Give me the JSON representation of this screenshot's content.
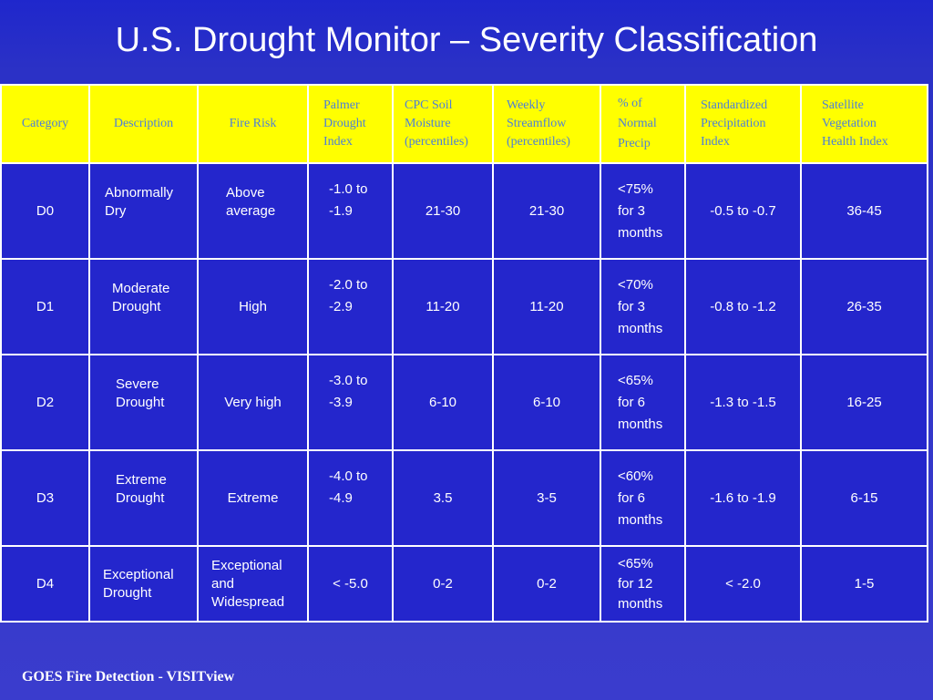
{
  "title": "U.S. Drought Monitor – Severity Classification",
  "footer": "GOES Fire Detection - VISITview",
  "table": {
    "headers": [
      {
        "label": "Category"
      },
      {
        "label": "Description"
      },
      {
        "label": "Fire Risk"
      },
      {
        "lines": [
          "Palmer",
          "Drought",
          "Index"
        ]
      },
      {
        "lines": [
          "CPC Soil",
          "Moisture",
          "(percentiles)"
        ]
      },
      {
        "lines": [
          "Weekly",
          "Streamflow",
          "(percentiles)"
        ]
      },
      {
        "lines": [
          "% of",
          "Normal",
          "Precip"
        ]
      },
      {
        "lines": [
          "Standardized",
          "Precipitation",
          "Index"
        ]
      },
      {
        "lines": [
          "Satellite",
          "Vegetation",
          "Health Index"
        ]
      }
    ],
    "rows": [
      {
        "category": "D0",
        "description": [
          "Abnormally",
          "Dry"
        ],
        "fire_risk": [
          "Above",
          "average"
        ],
        "palmer": [
          "-1.0 to",
          "-1.9"
        ],
        "soil": "21-30",
        "streamflow": "21-30",
        "precip": [
          "<75%",
          "for 3",
          "months"
        ],
        "spi": "-0.5 to -0.7",
        "vhi": "36-45"
      },
      {
        "category": "D1",
        "description": [
          "Moderate",
          "Drought"
        ],
        "fire_risk": [
          "High"
        ],
        "palmer": [
          "-2.0 to",
          "-2.9"
        ],
        "soil": "11-20",
        "streamflow": "11-20",
        "precip": [
          "<70%",
          "for 3",
          "months"
        ],
        "spi": "-0.8 to -1.2",
        "vhi": "26-35"
      },
      {
        "category": "D2",
        "description": [
          "Severe",
          "Drought"
        ],
        "fire_risk": [
          "Very high"
        ],
        "palmer": [
          "-3.0 to",
          "-3.9"
        ],
        "soil": "6-10",
        "streamflow": "6-10",
        "precip": [
          "<65%",
          "for 6",
          "months"
        ],
        "spi": "-1.3 to -1.5",
        "vhi": "16-25"
      },
      {
        "category": "D3",
        "description": [
          "Extreme",
          "Drought"
        ],
        "fire_risk": [
          "Extreme"
        ],
        "palmer": [
          "-4.0 to",
          "-4.9"
        ],
        "soil": "3.5",
        "streamflow": "3-5",
        "precip": [
          "<60%",
          "for 6",
          "months"
        ],
        "spi": "-1.6 to -1.9",
        "vhi": "6-15"
      },
      {
        "category": "D4",
        "description": [
          "Exceptional",
          "Drought"
        ],
        "fire_risk": [
          "Exceptional",
          "and",
          "Widespread"
        ],
        "palmer": [
          "< -5.0"
        ],
        "soil": "0-2",
        "streamflow": "0-2",
        "precip": [
          "<65%",
          "for 12",
          "months"
        ],
        "spi": "< -2.0",
        "vhi": "1-5"
      }
    ]
  }
}
